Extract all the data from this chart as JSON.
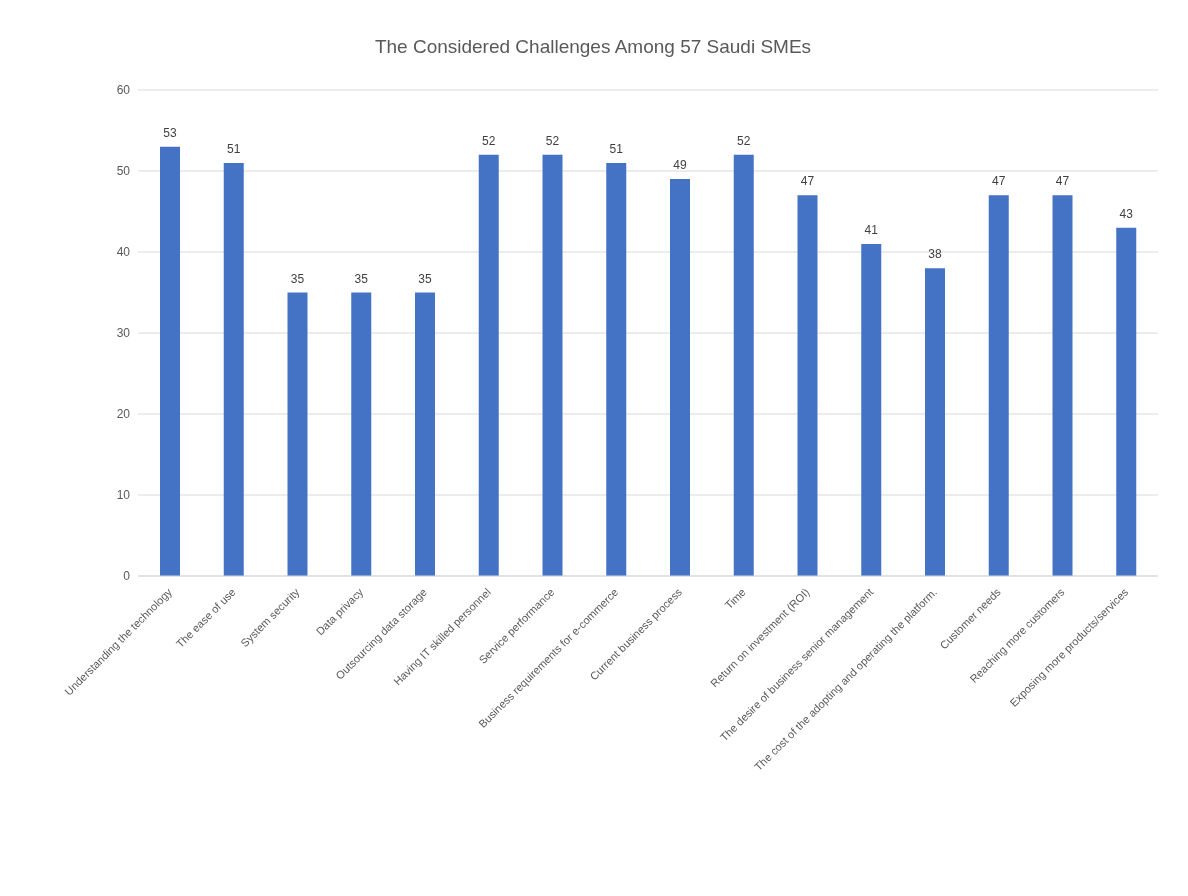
{
  "chart_data": {
    "type": "bar",
    "title": "The Considered Challenges Among 57 Saudi SMEs",
    "categories": [
      "Understanding the technology",
      "The ease of use",
      "System security",
      "Data privacy",
      "Outsourcing data storage",
      "Having IT skilled personnel",
      "Service performance",
      "Business requirements for e-commerce",
      "Current business process",
      "Time",
      "Return on investment (ROI)",
      "The desire of business senior management",
      "The cost of the adopting and operating the platform.",
      "Customer needs",
      "Reaching more customers",
      "Exposing more products/services"
    ],
    "values": [
      53,
      51,
      35,
      35,
      35,
      52,
      52,
      51,
      49,
      52,
      47,
      41,
      38,
      47,
      47,
      43
    ],
    "color": "#4472c4",
    "ylim": [
      0,
      60
    ],
    "yticks": [
      0,
      10,
      20,
      30,
      40,
      50,
      60
    ],
    "grid": "y",
    "data_labels": true
  }
}
